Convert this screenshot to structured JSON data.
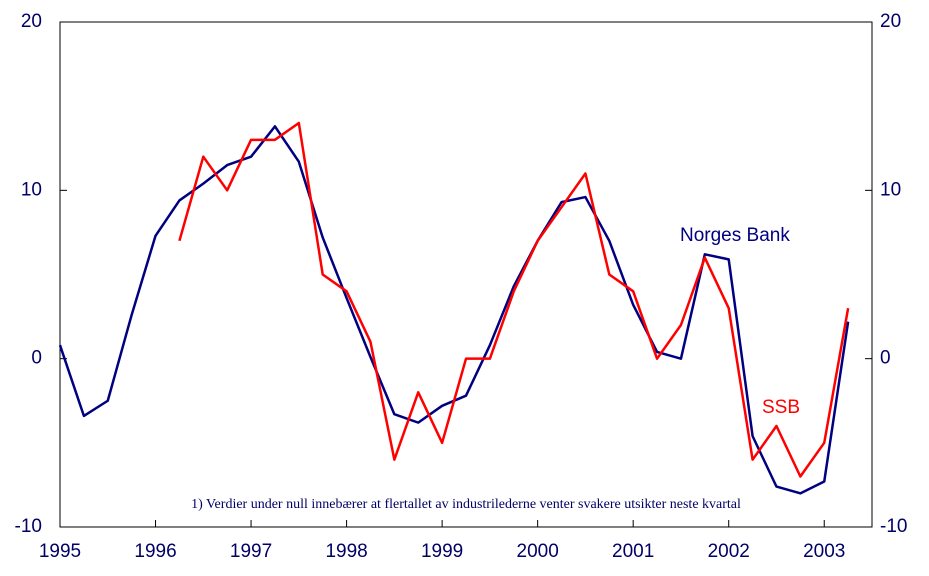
{
  "chart_data": {
    "type": "line",
    "note": "1) Verdier under null innebærer at flertallet av industrilederne venter svakere utsikter neste kvartal",
    "xlim": [
      1995,
      2003.5
    ],
    "xticks": [
      1995,
      1996,
      1997,
      1998,
      1999,
      2000,
      2001,
      2002,
      2003
    ],
    "ylim": [
      -10,
      20
    ],
    "yticks": [
      -10,
      0,
      10,
      20
    ],
    "y2lim": [
      -10,
      20
    ],
    "y2ticks": [
      -10,
      0,
      10,
      20
    ],
    "series": [
      {
        "name": "Norges Bank",
        "color": "#000080",
        "x": [
          1995,
          1995.25,
          1995.5,
          1995.75,
          1996,
          1996.25,
          1996.5,
          1996.75,
          1997,
          1997.25,
          1997.5,
          1997.75,
          1998,
          1998.25,
          1998.5,
          1998.75,
          1999,
          1999.25,
          1999.5,
          1999.75,
          2000,
          2000.25,
          2000.5,
          2000.75,
          2001,
          2001.25,
          2001.5,
          2001.75,
          2002,
          2002.25,
          2002.5,
          2002.75,
          2003,
          2003.25
        ],
        "values": [
          0.8,
          -3.4,
          -2.5,
          2.6,
          7.3,
          9.4,
          10.4,
          11.5,
          12.0,
          13.8,
          11.7,
          7.2,
          3.6,
          0.1,
          -3.3,
          -3.8,
          -2.8,
          -2.2,
          0.8,
          4.3,
          7.0,
          9.3,
          9.6,
          7.0,
          3.2,
          0.4,
          0.0,
          6.2,
          5.9,
          -4.6,
          -7.6,
          -8.0,
          -7.3,
          2.2
        ]
      },
      {
        "name": "SSB",
        "color": "#ff0000",
        "x": [
          1996.25,
          1996.5,
          1996.75,
          1997,
          1997.25,
          1997.5,
          1997.75,
          1998,
          1998.25,
          1998.5,
          1998.75,
          1999,
          1999.25,
          1999.5,
          1999.75,
          2000,
          2000.25,
          2000.5,
          2000.75,
          2001,
          2001.25,
          2001.5,
          2001.75,
          2002,
          2002.25,
          2002.5,
          2002.75,
          2003,
          2003.25
        ],
        "values": [
          7,
          12,
          10,
          13,
          13,
          14,
          5,
          4,
          1,
          -6,
          -2,
          -5,
          0,
          0,
          4,
          7,
          9,
          11,
          5,
          4,
          0,
          2,
          6,
          3,
          -6,
          -4,
          -7,
          -5,
          3
        ]
      }
    ]
  }
}
